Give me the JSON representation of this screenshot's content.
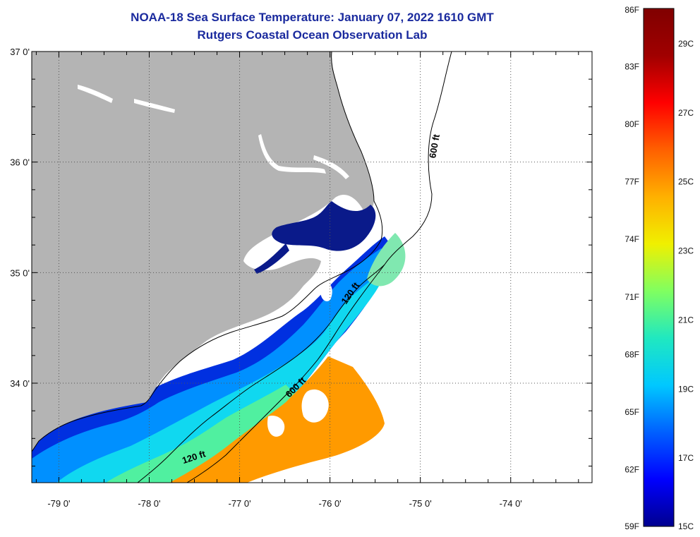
{
  "header": {
    "title": "NOAA-18 Sea Surface Temperature:  January 07, 2022 1610 GMT",
    "subtitle": "Rutgers Coastal Ocean Observation Lab"
  },
  "map": {
    "lat_range": [
      33.1,
      37.0
    ],
    "lon_range": [
      -79.3,
      -73.1
    ],
    "lat_ticks": [
      {
        "value": 37,
        "label": "37 0'"
      },
      {
        "value": 36,
        "label": "36 0'"
      },
      {
        "value": 35,
        "label": "35 0'"
      },
      {
        "value": 34,
        "label": "34 0'"
      }
    ],
    "lon_ticks": [
      {
        "value": -79,
        "label": "-79 0'"
      },
      {
        "value": -78,
        "label": "-78 0'"
      },
      {
        "value": -77,
        "label": "-77 0'"
      },
      {
        "value": -76,
        "label": "-76 0'"
      },
      {
        "value": -75,
        "label": "-75 0'"
      },
      {
        "value": -74,
        "label": "-74 0'"
      }
    ],
    "isobath_labels": [
      "600 ft",
      "120 ft",
      "600 ft",
      "120 ft"
    ],
    "colors": {
      "land": "#b4b4b4",
      "cloud": "#ffffff",
      "isobath": "#000000",
      "graticule": "#555555"
    }
  },
  "colorbar": {
    "fahrenheit": [
      {
        "value": 86,
        "label": "86F"
      },
      {
        "value": 83,
        "label": "83F"
      },
      {
        "value": 80,
        "label": "80F"
      },
      {
        "value": 77,
        "label": "77F"
      },
      {
        "value": 74,
        "label": "74F"
      },
      {
        "value": 71,
        "label": "71F"
      },
      {
        "value": 68,
        "label": "68F"
      },
      {
        "value": 65,
        "label": "65F"
      },
      {
        "value": 62,
        "label": "62F"
      },
      {
        "value": 59,
        "label": "59F"
      }
    ],
    "celsius": [
      {
        "value": 29,
        "label": "29C"
      },
      {
        "value": 27,
        "label": "27C"
      },
      {
        "value": 25,
        "label": "25C"
      },
      {
        "value": 23,
        "label": "23C"
      },
      {
        "value": 21,
        "label": "21C"
      },
      {
        "value": 19,
        "label": "19C"
      },
      {
        "value": 17,
        "label": "17C"
      },
      {
        "value": 15,
        "label": "15C"
      }
    ],
    "range_f": [
      59,
      86
    ],
    "colors": [
      "#00008f",
      "#0000ff",
      "#0060ff",
      "#00c8ff",
      "#20e8c0",
      "#80ff60",
      "#f0f000",
      "#ffb000",
      "#ff6000",
      "#ff0000",
      "#a00000",
      "#800000"
    ]
  }
}
